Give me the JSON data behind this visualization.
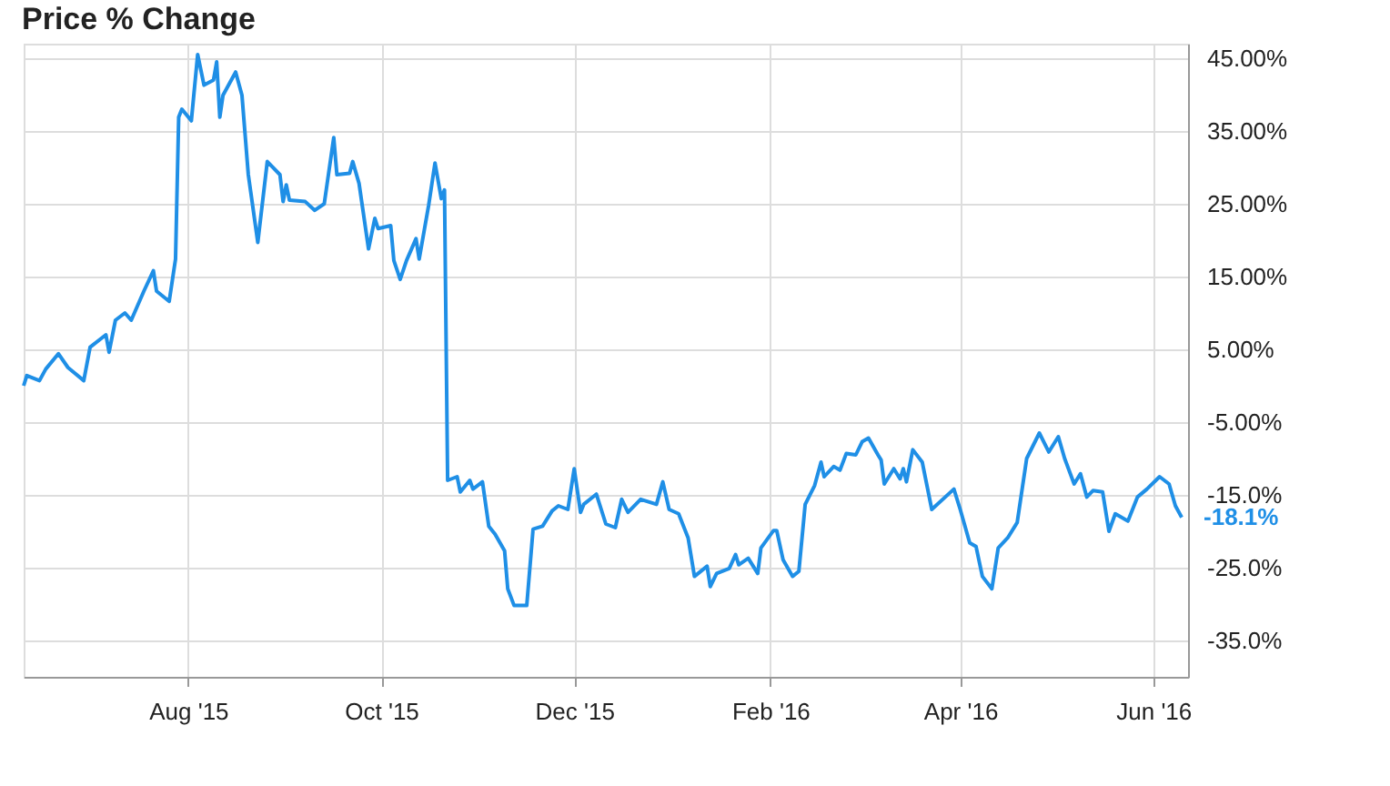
{
  "chart_data": {
    "type": "line",
    "title": "Price % Change",
    "x": [
      "2015-06-10",
      "2015-06-11",
      "2015-06-15",
      "2015-06-17",
      "2015-06-21",
      "2015-06-24",
      "2015-06-29",
      "2015-07-01",
      "2015-07-06",
      "2015-07-07",
      "2015-07-09",
      "2015-07-12",
      "2015-07-14",
      "2015-07-18",
      "2015-07-21",
      "2015-07-22",
      "2015-07-26",
      "2015-07-28",
      "2015-07-29",
      "2015-07-30",
      "2015-08-02",
      "2015-08-04",
      "2015-08-06",
      "2015-08-09",
      "2015-08-10",
      "2015-08-11",
      "2015-08-12",
      "2015-08-16",
      "2015-08-18",
      "2015-08-20",
      "2015-08-23",
      "2015-08-26",
      "2015-08-30",
      "2015-08-31",
      "2015-09-01",
      "2015-09-02",
      "2015-09-07",
      "2015-09-10",
      "2015-09-13",
      "2015-09-16",
      "2015-09-17",
      "2015-09-21",
      "2015-09-22",
      "2015-09-24",
      "2015-09-27",
      "2015-09-29",
      "2015-09-30",
      "2015-10-04",
      "2015-10-05",
      "2015-10-07",
      "2015-10-09",
      "2015-10-12",
      "2015-10-13",
      "2015-10-16",
      "2015-10-18",
      "2015-10-20",
      "2015-10-21",
      "2015-10-22",
      "2015-10-25",
      "2015-10-26",
      "2015-10-29",
      "2015-10-30",
      "2015-11-02",
      "2015-11-04",
      "2015-11-06",
      "2015-11-09",
      "2015-11-10",
      "2015-11-12",
      "2015-11-16",
      "2015-11-18",
      "2015-11-21",
      "2015-11-24",
      "2015-11-26",
      "2015-11-29",
      "2015-12-01",
      "2015-12-03",
      "2015-12-04",
      "2015-12-08",
      "2015-12-11",
      "2015-12-14",
      "2015-12-16",
      "2015-12-18",
      "2015-12-22",
      "2015-12-27",
      "2015-12-29",
      "2015-12-31",
      "2016-01-03",
      "2016-01-06",
      "2016-01-08",
      "2016-01-12",
      "2016-01-13",
      "2016-01-15",
      "2016-01-19",
      "2016-01-21",
      "2016-01-22",
      "2016-01-25",
      "2016-01-28",
      "2016-01-29",
      "2016-02-02",
      "2016-02-03",
      "2016-02-05",
      "2016-02-08",
      "2016-02-10",
      "2016-02-12",
      "2016-02-15",
      "2016-02-17",
      "2016-02-18",
      "2016-02-21",
      "2016-02-23",
      "2016-02-25",
      "2016-02-28",
      "2016-03-01",
      "2016-03-03",
      "2016-03-06",
      "2016-03-07",
      "2016-03-08",
      "2016-03-11",
      "2016-03-13",
      "2016-03-14",
      "2016-03-15",
      "2016-03-17",
      "2016-03-20",
      "2016-03-23",
      "2016-03-30",
      "2016-04-01",
      "2016-04-04",
      "2016-04-06",
      "2016-04-08",
      "2016-04-11",
      "2016-04-13",
      "2016-04-16",
      "2016-04-19",
      "2016-04-22",
      "2016-04-26",
      "2016-04-29",
      "2016-05-02",
      "2016-05-04",
      "2016-05-07",
      "2016-05-09",
      "2016-05-11",
      "2016-05-13",
      "2016-05-16",
      "2016-05-18",
      "2016-05-20",
      "2016-05-24",
      "2016-05-27",
      "2016-05-30",
      "2016-06-03",
      "2016-06-06",
      "2016-06-08",
      "2016-06-10"
    ],
    "series": [
      {
        "color": "#1f8fe6",
        "values": [
          0.0,
          1.4,
          0.7,
          2.3,
          4.4,
          2.5,
          0.7,
          5.3,
          7.0,
          4.6,
          9.0,
          10.0,
          9.0,
          13.0,
          15.8,
          13.0,
          11.6,
          17.4,
          36.9,
          38.0,
          36.4,
          45.5,
          41.3,
          42.0,
          44.5,
          36.9,
          39.9,
          43.1,
          39.9,
          29.0,
          19.7,
          30.8,
          29.0,
          25.3,
          27.6,
          25.5,
          25.3,
          24.1,
          25.0,
          34.1,
          29.0,
          29.2,
          30.8,
          27.8,
          18.8,
          23.0,
          21.6,
          22.0,
          17.2,
          14.6,
          17.2,
          20.2,
          17.4,
          24.8,
          30.6,
          25.7,
          26.9,
          -13.0,
          -12.5,
          -14.6,
          -13.0,
          -14.2,
          -13.2,
          -19.3,
          -20.4,
          -22.7,
          -27.9,
          -30.2,
          -30.2,
          -19.7,
          -19.3,
          -17.2,
          -16.5,
          -17.0,
          -11.4,
          -17.4,
          -16.3,
          -14.9,
          -19.0,
          -19.5,
          -15.6,
          -17.4,
          -15.6,
          -16.3,
          -13.2,
          -17.0,
          -17.6,
          -20.9,
          -26.2,
          -24.8,
          -27.6,
          -25.8,
          -25.1,
          -23.2,
          -24.6,
          -23.7,
          -25.8,
          -22.3,
          -19.9,
          -19.9,
          -23.9,
          -26.2,
          -25.5,
          -16.3,
          -13.7,
          -10.5,
          -12.5,
          -11.1,
          -11.6,
          -9.3,
          -9.5,
          -7.7,
          -7.2,
          -9.5,
          -10.2,
          -13.5,
          -11.4,
          -12.8,
          -11.4,
          -13.2,
          -8.8,
          -10.5,
          -17.0,
          -14.2,
          -17.0,
          -21.6,
          -22.1,
          -26.2,
          -27.9,
          -22.3,
          -20.9,
          -18.8,
          -10.0,
          -6.5,
          -9.1,
          -7.0,
          -10.0,
          -13.5,
          -12.1,
          -15.3,
          -14.4,
          -14.6,
          -20.0,
          -17.6,
          -18.6,
          -15.3,
          -14.2,
          -12.5,
          -13.5,
          -16.5,
          -18.1
        ]
      }
    ],
    "xlim": [
      "2015-06-10",
      "2016-06-12"
    ],
    "xticks": [
      {
        "value": "2015-08-01",
        "label": "Aug '15"
      },
      {
        "value": "2015-10-01",
        "label": "Oct '15"
      },
      {
        "value": "2015-12-01",
        "label": "Dec '15"
      },
      {
        "value": "2016-02-01",
        "label": "Feb '16"
      },
      {
        "value": "2016-04-01",
        "label": "Apr '16"
      },
      {
        "value": "2016-06-01",
        "label": "Jun '16"
      }
    ],
    "ylim": [
      -40,
      47
    ],
    "yticks": [
      {
        "value": 45,
        "label": "45.00%"
      },
      {
        "value": 35,
        "label": "35.00%"
      },
      {
        "value": 25,
        "label": "25.00%"
      },
      {
        "value": 15,
        "label": "15.00%"
      },
      {
        "value": 5,
        "label": "5.00%"
      },
      {
        "value": -5,
        "label": "-5.00%"
      },
      {
        "value": -15,
        "label": "-15.0%"
      },
      {
        "value": -25,
        "label": "-25.0%"
      },
      {
        "value": -35,
        "label": "-35.0%"
      }
    ],
    "annotations": [
      {
        "text": "-18.1%",
        "x": "2016-06-10",
        "y": -18.1
      }
    ],
    "grid": true,
    "marker": "none",
    "line_style": "solid"
  }
}
